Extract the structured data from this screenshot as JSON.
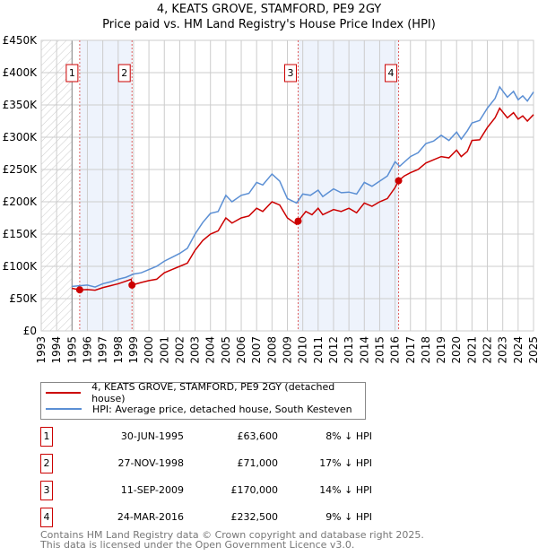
{
  "chart_data": {
    "type": "line",
    "title": "4, KEATS GROVE, STAMFORD, PE9 2GY",
    "subtitle": "Price paid vs. HM Land Registry's House Price Index (HPI)",
    "xlim": [
      1993,
      2025
    ],
    "ylim": [
      0,
      450000
    ],
    "x_ticks": [
      "1993",
      "1994",
      "1995",
      "1996",
      "1997",
      "1998",
      "1999",
      "2000",
      "2001",
      "2002",
      "2003",
      "2004",
      "2005",
      "2006",
      "2007",
      "2008",
      "2009",
      "2010",
      "2011",
      "2012",
      "2013",
      "2014",
      "2015",
      "2016",
      "2017",
      "2018",
      "2019",
      "2020",
      "2021",
      "2022",
      "2023",
      "2024",
      "2025"
    ],
    "y_ticks": [
      {
        "v": 0,
        "label": "£0"
      },
      {
        "v": 50000,
        "label": "£50K"
      },
      {
        "v": 100000,
        "label": "£100K"
      },
      {
        "v": 150000,
        "label": "£150K"
      },
      {
        "v": 200000,
        "label": "£200K"
      },
      {
        "v": 250000,
        "label": "£250K"
      },
      {
        "v": 300000,
        "label": "£300K"
      },
      {
        "v": 350000,
        "label": "£350K"
      },
      {
        "v": 400000,
        "label": "£400K"
      },
      {
        "v": 450000,
        "label": "£450K"
      }
    ],
    "grid": true,
    "hatched_range": [
      1993,
      1995
    ],
    "shaded_ranges": [
      [
        1995.5,
        1998.9
      ],
      [
        2009.7,
        2016.23
      ]
    ],
    "series": [
      {
        "name": "4, KEATS GROVE, STAMFORD, PE9 2GY (detached house)",
        "color": "#cc0000",
        "x": [
          1995.0,
          1995.5,
          1996.0,
          1996.5,
          1997.0,
          1997.5,
          1998.0,
          1998.5,
          1998.85,
          1998.9,
          1999.5,
          2000.0,
          2000.5,
          2001.0,
          2001.5,
          2002.0,
          2002.5,
          2003.0,
          2003.5,
          2004.0,
          2004.5,
          2005.0,
          2005.4,
          2006.0,
          2006.5,
          2007.0,
          2007.4,
          2008.0,
          2008.5,
          2009.0,
          2009.6,
          2009.7,
          2010.2,
          2010.6,
          2011.0,
          2011.3,
          2012.0,
          2012.5,
          2013.0,
          2013.5,
          2014.0,
          2014.5,
          2015.0,
          2015.5,
          2016.0,
          2016.23,
          2016.6,
          2017.0,
          2017.5,
          2018.0,
          2018.5,
          2019.0,
          2019.5,
          2020.0,
          2020.3,
          2020.7,
          2021.0,
          2021.5,
          2022.0,
          2022.5,
          2022.8,
          2023.3,
          2023.7,
          2024.0,
          2024.3,
          2024.6,
          2025.0
        ],
        "y": [
          66000,
          63600,
          64000,
          63000,
          67000,
          70000,
          73000,
          77000,
          80000,
          71000,
          75000,
          78000,
          80000,
          90000,
          95000,
          100000,
          105000,
          125000,
          140000,
          150000,
          155000,
          175000,
          167000,
          175000,
          178000,
          190000,
          185000,
          200000,
          195000,
          175000,
          165000,
          170000,
          185000,
          180000,
          190000,
          180000,
          188000,
          185000,
          190000,
          183000,
          198000,
          193000,
          200000,
          205000,
          222000,
          232500,
          240000,
          245000,
          250000,
          260000,
          265000,
          270000,
          268000,
          280000,
          270000,
          278000,
          295000,
          296000,
          315000,
          330000,
          345000,
          330000,
          338000,
          328000,
          333000,
          325000,
          335000
        ]
      },
      {
        "name": "HPI: Average price, detached house, South Kesteven",
        "color": "#5b8fd4",
        "x": [
          1995.0,
          1995.5,
          1996.0,
          1996.5,
          1997.0,
          1997.5,
          1998.0,
          1998.5,
          1999.0,
          1999.5,
          2000.0,
          2000.5,
          2001.0,
          2001.5,
          2002.0,
          2002.5,
          2003.0,
          2003.5,
          2004.0,
          2004.5,
          2005.0,
          2005.4,
          2006.0,
          2006.5,
          2007.0,
          2007.4,
          2008.0,
          2008.5,
          2009.0,
          2009.6,
          2010.0,
          2010.5,
          2011.0,
          2011.3,
          2012.0,
          2012.5,
          2013.0,
          2013.5,
          2014.0,
          2014.5,
          2015.0,
          2015.5,
          2016.0,
          2016.3,
          2017.0,
          2017.5,
          2018.0,
          2018.5,
          2019.0,
          2019.5,
          2020.0,
          2020.3,
          2020.7,
          2021.0,
          2021.5,
          2022.0,
          2022.5,
          2022.8,
          2023.3,
          2023.7,
          2024.0,
          2024.3,
          2024.6,
          2025.0
        ],
        "y": [
          69000,
          70000,
          71000,
          68000,
          73000,
          76000,
          80000,
          83000,
          88000,
          90000,
          95000,
          100000,
          108000,
          114000,
          120000,
          128000,
          150000,
          168000,
          182000,
          185000,
          210000,
          200000,
          210000,
          213000,
          230000,
          226000,
          243000,
          232000,
          205000,
          198000,
          212000,
          210000,
          218000,
          208000,
          220000,
          214000,
          215000,
          212000,
          230000,
          224000,
          232000,
          240000,
          262000,
          255000,
          270000,
          276000,
          290000,
          294000,
          303000,
          295000,
          308000,
          297000,
          310000,
          322000,
          326000,
          345000,
          360000,
          378000,
          362000,
          371000,
          358000,
          364000,
          356000,
          370000
        ]
      }
    ],
    "sales": [
      {
        "n": "1",
        "x": 1995.5,
        "date": "30-JUN-1995",
        "price_value": 63600,
        "price": "£63,600",
        "hpi": "8% ↓ HPI"
      },
      {
        "n": "2",
        "x": 1998.9,
        "date": "27-NOV-1998",
        "price_value": 71000,
        "price": "£71,000",
        "hpi": "17% ↓ HPI"
      },
      {
        "n": "3",
        "x": 2009.7,
        "date": "11-SEP-2009",
        "price_value": 170000,
        "price": "£170,000",
        "hpi": "14% ↓ HPI"
      },
      {
        "n": "4",
        "x": 2016.23,
        "date": "24-MAR-2016",
        "price_value": 232500,
        "price": "£232,500",
        "hpi": "9% ↓ HPI"
      }
    ],
    "marker_label_value": 400000
  },
  "footer": {
    "line1": "Contains HM Land Registry data © Crown copyright and database right 2025.",
    "line2": "This data is licensed under the Open Government Licence v3.0."
  }
}
